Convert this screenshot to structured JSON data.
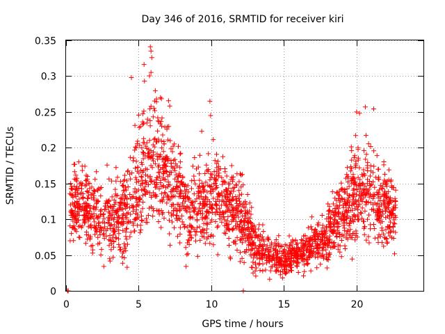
{
  "chart_data": {
    "type": "scatter",
    "title": "Day 346 of 2016, SRMTID for receiver kiri",
    "xlabel": "GPS time / hours",
    "ylabel": "SRMTID / TECUs",
    "xlim": [
      0,
      24.6
    ],
    "ylim": [
      0,
      0.35
    ],
    "x_ticks": [
      0,
      5,
      10,
      15,
      20
    ],
    "y_ticks": [
      0,
      0.05,
      0.1,
      0.15,
      0.2,
      0.25,
      0.3,
      0.35
    ],
    "x_tick_labels": [
      "0",
      "5",
      "10",
      "15",
      "20"
    ],
    "y_tick_labels": [
      "0",
      "0.05",
      "0.1",
      "0.15",
      "0.2",
      "0.25",
      "0.3",
      "0.35"
    ],
    "grid": true,
    "marker": "plus",
    "series_color": "#ff0000",
    "approx_point_count": 2400,
    "trend": [
      {
        "x": 0.25,
        "y": 0.115
      },
      {
        "x": 1.0,
        "y": 0.125
      },
      {
        "x": 2.0,
        "y": 0.105
      },
      {
        "x": 3.0,
        "y": 0.095
      },
      {
        "x": 4.0,
        "y": 0.11
      },
      {
        "x": 5.0,
        "y": 0.15
      },
      {
        "x": 5.8,
        "y": 0.19
      },
      {
        "x": 6.5,
        "y": 0.175
      },
      {
        "x": 7.5,
        "y": 0.14
      },
      {
        "x": 8.5,
        "y": 0.105
      },
      {
        "x": 9.5,
        "y": 0.12
      },
      {
        "x": 10.2,
        "y": 0.135
      },
      {
        "x": 11.0,
        "y": 0.12
      },
      {
        "x": 12.0,
        "y": 0.1
      },
      {
        "x": 13.0,
        "y": 0.065
      },
      {
        "x": 14.0,
        "y": 0.05
      },
      {
        "x": 15.0,
        "y": 0.045
      },
      {
        "x": 16.0,
        "y": 0.05
      },
      {
        "x": 17.0,
        "y": 0.06
      },
      {
        "x": 18.0,
        "y": 0.08
      },
      {
        "x": 19.0,
        "y": 0.105
      },
      {
        "x": 20.0,
        "y": 0.135
      },
      {
        "x": 20.7,
        "y": 0.15
      },
      {
        "x": 21.5,
        "y": 0.12
      },
      {
        "x": 22.7,
        "y": 0.105
      }
    ],
    "spread": [
      {
        "x": 0.25,
        "s": 0.03
      },
      {
        "x": 3.0,
        "s": 0.035
      },
      {
        "x": 5.0,
        "s": 0.05
      },
      {
        "x": 6.0,
        "s": 0.06
      },
      {
        "x": 8.5,
        "s": 0.035
      },
      {
        "x": 10.0,
        "s": 0.045
      },
      {
        "x": 12.0,
        "s": 0.035
      },
      {
        "x": 14.0,
        "s": 0.015
      },
      {
        "x": 16.0,
        "s": 0.015
      },
      {
        "x": 18.0,
        "s": 0.025
      },
      {
        "x": 20.5,
        "s": 0.05
      },
      {
        "x": 22.7,
        "s": 0.03
      }
    ],
    "notable_points": [
      {
        "x": 5.8,
        "y": 0.341
      },
      {
        "x": 5.85,
        "y": 0.335
      },
      {
        "x": 5.9,
        "y": 0.326
      },
      {
        "x": 4.5,
        "y": 0.298
      },
      {
        "x": 5.4,
        "y": 0.293
      },
      {
        "x": 6.5,
        "y": 0.27
      },
      {
        "x": 9.9,
        "y": 0.265
      },
      {
        "x": 9.95,
        "y": 0.245
      },
      {
        "x": 20.6,
        "y": 0.257
      },
      {
        "x": 20.0,
        "y": 0.25
      },
      {
        "x": 20.2,
        "y": 0.248
      },
      {
        "x": 20.1,
        "y": 0.2
      },
      {
        "x": 14.9,
        "y": 0.018
      },
      {
        "x": 3.0,
        "y": 0.045
      },
      {
        "x": 4.2,
        "y": 0.033
      },
      {
        "x": 12.2,
        "y": 0.0
      },
      {
        "x": 0.1,
        "y": 0.0
      },
      {
        "x": 0.15,
        "y": 0.0
      }
    ]
  }
}
